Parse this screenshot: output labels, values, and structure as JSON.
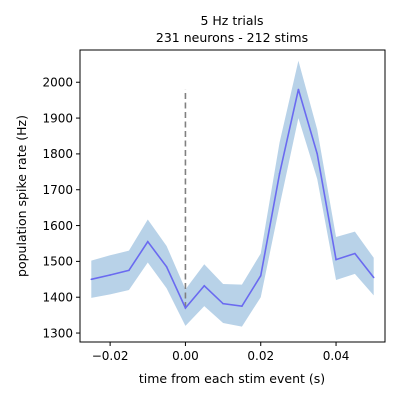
{
  "chart_data": {
    "type": "line",
    "title_lines": [
      "5 Hz trials",
      "231 neurons - 212 stims"
    ],
    "xlabel": "time from each stim event (s)",
    "ylabel": "population spike rate (Hz)",
    "xlim": [
      -0.028,
      0.053
    ],
    "ylim": [
      1275,
      2090
    ],
    "xticks": [
      -0.02,
      0.0,
      0.02,
      0.04
    ],
    "xtick_labels": [
      "−0.02",
      "0.00",
      "0.02",
      "0.04"
    ],
    "yticks": [
      1300,
      1400,
      1500,
      1600,
      1700,
      1800,
      1900,
      2000
    ],
    "ytick_labels": [
      "1300",
      "1400",
      "1500",
      "1600",
      "1700",
      "1800",
      "1900",
      "2000"
    ],
    "grid": false,
    "legend": false,
    "series": [
      {
        "x": [
          -0.025,
          -0.02,
          -0.015,
          -0.01,
          -0.005,
          0.0,
          0.005,
          0.01,
          0.015,
          0.02,
          0.025,
          0.03,
          0.035,
          0.04,
          0.045,
          0.05
        ],
        "y": [
          1450,
          1462,
          1475,
          1555,
          1485,
          1370,
          1432,
          1382,
          1375,
          1460,
          1745,
          1980,
          1800,
          1505,
          1522,
          1455
        ],
        "lower": [
          1398,
          1408,
          1420,
          1497,
          1425,
          1320,
          1375,
          1328,
          1318,
          1400,
          1655,
          1900,
          1730,
          1448,
          1465,
          1405
        ],
        "upper": [
          1502,
          1517,
          1530,
          1617,
          1543,
          1422,
          1492,
          1437,
          1435,
          1522,
          1832,
          2060,
          1868,
          1568,
          1583,
          1510
        ],
        "color": "#6a6af0",
        "band_color": "#b8d2e8"
      }
    ],
    "stim_marker": {
      "x": 0.0,
      "y_from": 1370,
      "y_to": 1980,
      "color": "#808080",
      "style": "dashed"
    }
  }
}
